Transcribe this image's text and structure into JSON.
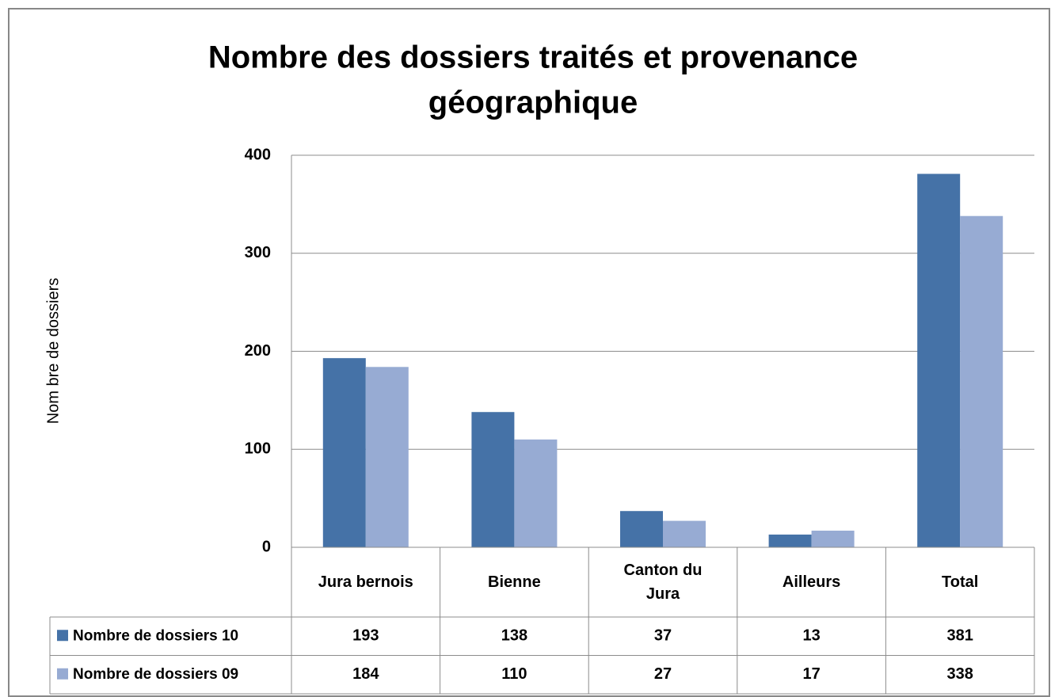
{
  "chart_data": {
    "type": "bar",
    "title": [
      "Nombre des dossiers traités et provenance",
      "géographique"
    ],
    "y_label": "Nom bre de dossiers",
    "categories": [
      "Jura bernois",
      "Bienne",
      "Canton du Jura",
      "Ailleurs",
      "Total"
    ],
    "series": [
      {
        "name": "Nombre de dossiers 10",
        "color": "#4572a7",
        "values": [
          193,
          138,
          37,
          13,
          381
        ]
      },
      {
        "name": "Nombre de dossiers 09",
        "color": "#97abd3",
        "values": [
          184,
          110,
          27,
          17,
          338
        ]
      }
    ],
    "ylim": [
      0,
      400
    ],
    "yticks": [
      0,
      100,
      200,
      300,
      400
    ],
    "grid": true,
    "data_table": true
  }
}
